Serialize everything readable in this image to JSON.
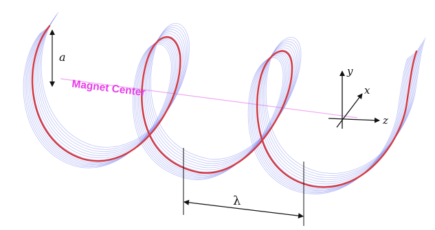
{
  "labels": {
    "amplitude": "a",
    "center": "Magnet Center",
    "wavelength": "λ",
    "axis_x": "x",
    "axis_y": "y",
    "axis_z": "z"
  },
  "colors": {
    "main_helix": "#d6393f",
    "envelope": "#8a94f0",
    "center_text": "#e83de8",
    "center_line": "#f2a8f2",
    "ink": "#111111"
  },
  "helix": {
    "turns": 3,
    "envelope_strands": 14
  }
}
